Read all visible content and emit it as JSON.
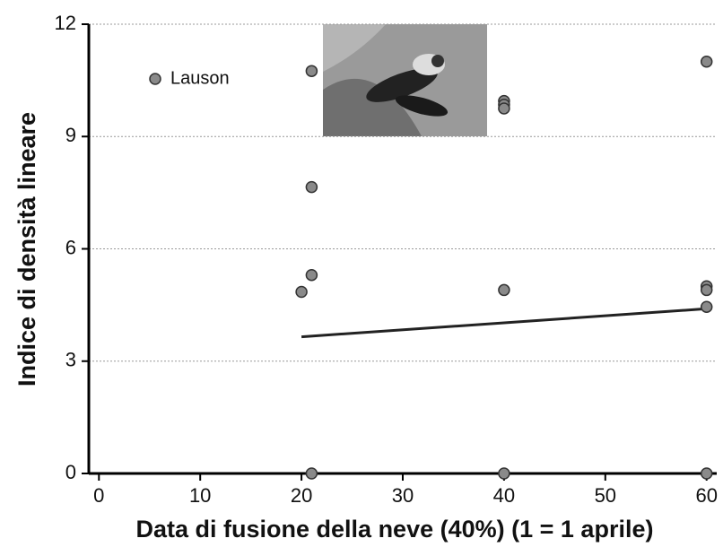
{
  "chart_data": {
    "type": "scatter",
    "x_label": "Data di fusione della neve (40%) (1 = 1 aprile)",
    "y_label": "Indice di densità lineare",
    "series": [
      {
        "name": "Lauson",
        "color": "#8a8a8a",
        "x": [
          20,
          21,
          21,
          21,
          21,
          40,
          40,
          40,
          40,
          40,
          60,
          60,
          60,
          60,
          60
        ],
        "values": [
          4.85,
          5.3,
          7.65,
          10.75,
          0,
          4.9,
          9.95,
          9.85,
          9.75,
          0,
          11,
          5,
          4.9,
          4.45,
          0
        ]
      }
    ],
    "trendline": {
      "x": [
        20,
        60
      ],
      "values": [
        3.65,
        4.4
      ],
      "color": "#222222"
    },
    "xlim": [
      -1,
      61
    ],
    "xticks": [
      0,
      10,
      20,
      30,
      40,
      50,
      60
    ],
    "ylim": [
      0,
      12
    ],
    "yticks": [
      0,
      3,
      6,
      9,
      12
    ],
    "grid": true,
    "legend": "upper left"
  }
}
